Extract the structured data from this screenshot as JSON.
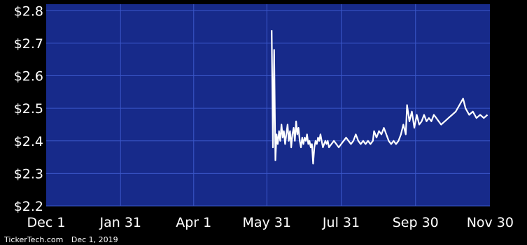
{
  "colors": {
    "background": "#000000",
    "plot_background": "#172a8a",
    "grid": "#3a56c8",
    "line": "#ffffff",
    "text": "#ffffff"
  },
  "footer": {
    "source": "TickerTech.com",
    "date": "Dec 1, 2019"
  },
  "chart_data": {
    "type": "line",
    "title": "",
    "xlabel": "",
    "ylabel": "",
    "grid": true,
    "xlim": [
      "2018-12-01",
      "2019-11-30"
    ],
    "ylim": [
      2.2,
      2.82
    ],
    "y_ticks": [
      2.2,
      2.3,
      2.4,
      2.5,
      2.6,
      2.7,
      2.8
    ],
    "y_tick_labels": [
      "$2.2",
      "$2.3",
      "$2.4",
      "$2.5",
      "$2.6",
      "$2.7",
      "$2.8"
    ],
    "x_ticks": [
      "2018-12-01",
      "2019-01-31",
      "2019-04-01",
      "2019-05-31",
      "2019-07-31",
      "2019-09-30",
      "2019-11-30"
    ],
    "x_tick_labels": [
      "Dec 1",
      "Jan 31",
      "Apr 1",
      "May 31",
      "Jul 31",
      "Sep 30",
      "Nov 30"
    ],
    "series": [
      {
        "points": [
          [
            "2019-06-04",
            2.74
          ],
          [
            "2019-06-05",
            2.38
          ],
          [
            "2019-06-06",
            2.68
          ],
          [
            "2019-06-07",
            2.34
          ],
          [
            "2019-06-08",
            2.42
          ],
          [
            "2019-06-09",
            2.39
          ],
          [
            "2019-06-10",
            2.43
          ],
          [
            "2019-06-11",
            2.4
          ],
          [
            "2019-06-12",
            2.45
          ],
          [
            "2019-06-13",
            2.41
          ],
          [
            "2019-06-14",
            2.43
          ],
          [
            "2019-06-15",
            2.39
          ],
          [
            "2019-06-16",
            2.42
          ],
          [
            "2019-06-17",
            2.45
          ],
          [
            "2019-06-18",
            2.4
          ],
          [
            "2019-06-19",
            2.43
          ],
          [
            "2019-06-20",
            2.38
          ],
          [
            "2019-06-21",
            2.42
          ],
          [
            "2019-06-22",
            2.44
          ],
          [
            "2019-06-23",
            2.4
          ],
          [
            "2019-06-24",
            2.46
          ],
          [
            "2019-06-25",
            2.42
          ],
          [
            "2019-06-26",
            2.44
          ],
          [
            "2019-06-27",
            2.4
          ],
          [
            "2019-06-28",
            2.38
          ],
          [
            "2019-06-29",
            2.41
          ],
          [
            "2019-06-30",
            2.39
          ],
          [
            "2019-07-01",
            2.41
          ],
          [
            "2019-07-02",
            2.4
          ],
          [
            "2019-07-03",
            2.42
          ],
          [
            "2019-07-04",
            2.39
          ],
          [
            "2019-07-05",
            2.4
          ],
          [
            "2019-07-06",
            2.38
          ],
          [
            "2019-07-07",
            2.39
          ],
          [
            "2019-07-08",
            2.33
          ],
          [
            "2019-07-09",
            2.38
          ],
          [
            "2019-07-10",
            2.4
          ],
          [
            "2019-07-11",
            2.39
          ],
          [
            "2019-07-12",
            2.41
          ],
          [
            "2019-07-13",
            2.4
          ],
          [
            "2019-07-14",
            2.42
          ],
          [
            "2019-07-15",
            2.4
          ],
          [
            "2019-07-16",
            2.38
          ],
          [
            "2019-07-17",
            2.39
          ],
          [
            "2019-07-18",
            2.4
          ],
          [
            "2019-07-19",
            2.39
          ],
          [
            "2019-07-20",
            2.4
          ],
          [
            "2019-07-21",
            2.38
          ],
          [
            "2019-07-23",
            2.39
          ],
          [
            "2019-07-25",
            2.4
          ],
          [
            "2019-07-27",
            2.39
          ],
          [
            "2019-07-29",
            2.38
          ],
          [
            "2019-07-31",
            2.39
          ],
          [
            "2019-08-02",
            2.4
          ],
          [
            "2019-08-04",
            2.41
          ],
          [
            "2019-08-06",
            2.4
          ],
          [
            "2019-08-08",
            2.39
          ],
          [
            "2019-08-10",
            2.4
          ],
          [
            "2019-08-12",
            2.42
          ],
          [
            "2019-08-14",
            2.4
          ],
          [
            "2019-08-16",
            2.39
          ],
          [
            "2019-08-18",
            2.4
          ],
          [
            "2019-08-20",
            2.39
          ],
          [
            "2019-08-22",
            2.4
          ],
          [
            "2019-08-24",
            2.39
          ],
          [
            "2019-08-26",
            2.4
          ],
          [
            "2019-08-27",
            2.43
          ],
          [
            "2019-08-29",
            2.41
          ],
          [
            "2019-08-31",
            2.43
          ],
          [
            "2019-09-02",
            2.42
          ],
          [
            "2019-09-04",
            2.44
          ],
          [
            "2019-09-06",
            2.42
          ],
          [
            "2019-09-08",
            2.4
          ],
          [
            "2019-09-10",
            2.39
          ],
          [
            "2019-09-12",
            2.4
          ],
          [
            "2019-09-14",
            2.39
          ],
          [
            "2019-09-16",
            2.4
          ],
          [
            "2019-09-18",
            2.42
          ],
          [
            "2019-09-20",
            2.45
          ],
          [
            "2019-09-22",
            2.42
          ],
          [
            "2019-09-23",
            2.51
          ],
          [
            "2019-09-25",
            2.46
          ],
          [
            "2019-09-27",
            2.49
          ],
          [
            "2019-09-29",
            2.44
          ],
          [
            "2019-10-01",
            2.48
          ],
          [
            "2019-10-03",
            2.45
          ],
          [
            "2019-10-05",
            2.46
          ],
          [
            "2019-10-07",
            2.48
          ],
          [
            "2019-10-09",
            2.46
          ],
          [
            "2019-10-11",
            2.47
          ],
          [
            "2019-10-13",
            2.46
          ],
          [
            "2019-10-15",
            2.48
          ],
          [
            "2019-10-17",
            2.47
          ],
          [
            "2019-10-19",
            2.46
          ],
          [
            "2019-10-21",
            2.45
          ],
          [
            "2019-10-24",
            2.46
          ],
          [
            "2019-10-27",
            2.47
          ],
          [
            "2019-10-30",
            2.48
          ],
          [
            "2019-11-02",
            2.49
          ],
          [
            "2019-11-05",
            2.51
          ],
          [
            "2019-11-08",
            2.53
          ],
          [
            "2019-11-10",
            2.5
          ],
          [
            "2019-11-13",
            2.48
          ],
          [
            "2019-11-16",
            2.49
          ],
          [
            "2019-11-19",
            2.47
          ],
          [
            "2019-11-22",
            2.48
          ],
          [
            "2019-11-25",
            2.47
          ],
          [
            "2019-11-28",
            2.48
          ]
        ]
      }
    ]
  }
}
